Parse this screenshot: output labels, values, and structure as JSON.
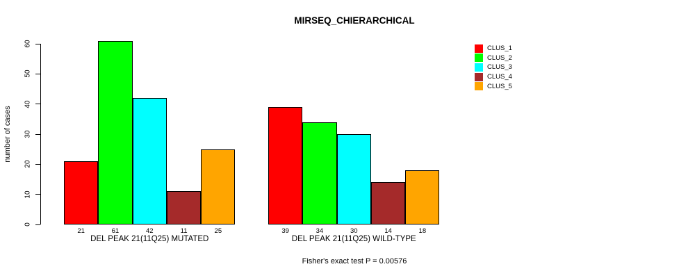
{
  "title": "MIRSEQ_CHIERARCHICAL",
  "y_axis": {
    "label": "number of cases",
    "ticks": [
      0,
      10,
      20,
      30,
      40,
      50,
      60
    ]
  },
  "footer": {
    "text": "Fisher's exact test P = 0.00576"
  },
  "chart_data": {
    "type": "bar",
    "title": "MIRSEQ_CHIERARCHICAL",
    "xlabel": "",
    "ylabel": "number of cases",
    "ylim": [
      0,
      60
    ],
    "grid": false,
    "legend_position": "right",
    "bar_value_labels": true,
    "annotation": "Fisher's exact test P = 0.00576",
    "categories": [
      "DEL PEAK 21(11Q25) MUTATED",
      "DEL PEAK 21(11Q25) WILD-TYPE"
    ],
    "series": [
      {
        "name": "CLUS_1",
        "color": "#FF0000",
        "values": [
          21,
          39
        ]
      },
      {
        "name": "CLUS_2",
        "color": "#00FF00",
        "values": [
          61,
          34
        ]
      },
      {
        "name": "CLUS_3",
        "color": "#00FFFF",
        "values": [
          42,
          30
        ]
      },
      {
        "name": "CLUS_4",
        "color": "#A52A2A",
        "values": [
          11,
          14
        ]
      },
      {
        "name": "CLUS_5",
        "color": "#FFA500",
        "values": [
          25,
          18
        ]
      }
    ]
  }
}
